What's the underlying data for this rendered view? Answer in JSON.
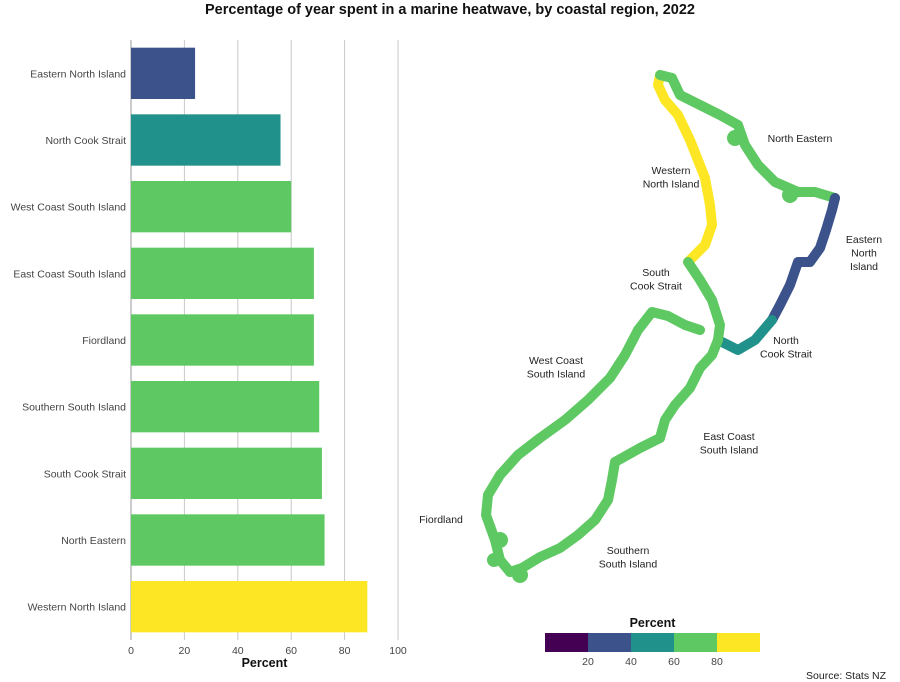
{
  "title": "Percentage of year spent in a marine heatwave, by coastal region, 2022",
  "source": "Source: Stats NZ",
  "colors": {
    "c0_20": "#440154",
    "c20_40": "#3b528b",
    "c40_60": "#21918c",
    "c60_80": "#5ec962",
    "c80_100": "#fde725",
    "grid": "#c8c8c8",
    "axis": "#9a9a9a"
  },
  "chart_data": [
    {
      "type": "bar",
      "orientation": "horizontal",
      "categories": [
        "Eastern North Island",
        "North Cook Strait",
        "West Coast South Island",
        "East Coast South Island",
        "Fiordland",
        "Southern South Island",
        "South Cook Strait",
        "North Eastern",
        "Western North Island"
      ],
      "values": [
        24,
        56,
        60,
        68.5,
        68.5,
        70.5,
        71.5,
        72.5,
        88.5
      ],
      "xlabel": "Percent",
      "xlim": [
        0,
        100
      ],
      "xticks": [
        "0",
        "20",
        "40",
        "60",
        "80",
        "100"
      ],
      "grid": "vertical"
    },
    {
      "type": "map",
      "regions": [
        {
          "name": "North Eastern",
          "label_lines": [
            "North Eastern"
          ]
        },
        {
          "name": "Western North Island",
          "label_lines": [
            "Western",
            "North Island"
          ]
        },
        {
          "name": "Eastern North Island",
          "label_lines": [
            "Eastern",
            "North",
            "Island"
          ]
        },
        {
          "name": "South Cook Strait",
          "label_lines": [
            "South",
            "Cook Strait"
          ]
        },
        {
          "name": "North Cook Strait",
          "label_lines": [
            "North",
            "Cook Strait"
          ]
        },
        {
          "name": "West Coast South Island",
          "label_lines": [
            "West Coast",
            "South Island"
          ]
        },
        {
          "name": "East Coast South Island",
          "label_lines": [
            "East Coast",
            "South Island"
          ]
        },
        {
          "name": "Fiordland",
          "label_lines": [
            "Fiordland"
          ]
        },
        {
          "name": "Southern South Island",
          "label_lines": [
            "Southern",
            "South Island"
          ]
        }
      ],
      "legend": {
        "title": "Percent",
        "tick_labels": [
          "20",
          "40",
          "60",
          "80"
        ],
        "placement": "bottom"
      }
    }
  ]
}
